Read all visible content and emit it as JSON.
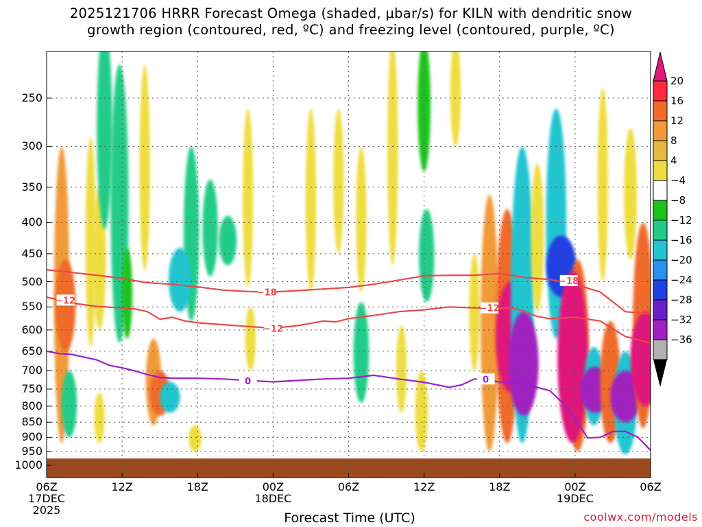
{
  "chart_data": {
    "type": "time-height cross-section (filled contour)",
    "title_line1": "2025121706 HRRR Forecast Omega (shaded, μbar/s) for KILN with dendritic snow",
    "title_line2": "growth region (contoured, red, ºC) and freezing level (contoured, purple, ºC)",
    "xlabel": "Forecast Time (UTC)",
    "credit": "coolwx.com/models",
    "x_ticks": [
      {
        "hour": 0,
        "lines": [
          "06Z",
          "17DEC",
          "2025"
        ]
      },
      {
        "hour": 6,
        "lines": [
          "12Z"
        ]
      },
      {
        "hour": 12,
        "lines": [
          "18Z"
        ]
      },
      {
        "hour": 18,
        "lines": [
          "00Z",
          "18DEC"
        ]
      },
      {
        "hour": 24,
        "lines": [
          "06Z"
        ]
      },
      {
        "hour": 30,
        "lines": [
          "12Z"
        ]
      },
      {
        "hour": 36,
        "lines": [
          "18Z"
        ]
      },
      {
        "hour": 42,
        "lines": [
          "00Z",
          "19DEC"
        ]
      },
      {
        "hour": 48,
        "lines": [
          "06Z"
        ]
      }
    ],
    "x_range_hours": [
      0,
      48
    ],
    "y_axis": "pressure (mb)",
    "y_ticks": [
      250,
      300,
      350,
      400,
      450,
      500,
      550,
      600,
      650,
      700,
      750,
      800,
      850,
      900,
      950,
      1000
    ],
    "y_range_mb": [
      200,
      1000
    ],
    "colorbar": {
      "labels": [
        "20",
        "16",
        "12",
        "8",
        "4",
        "−4",
        "−8",
        "−12",
        "−16",
        "−20",
        "−24",
        "−28",
        "−32",
        "−36"
      ],
      "colors": [
        "#ff2a3c",
        "#f06a2a",
        "#f09a38",
        "#e6b840",
        "#eedd40",
        "#ffffff",
        "#1bc41b",
        "#22cc88",
        "#22c4d0",
        "#2a90f0",
        "#2040e0",
        "#6a20c8",
        "#a020c0",
        "#b0b0b0"
      ],
      "top_color": "#e0187a",
      "bottom_color": "#000000"
    },
    "contours": [
      {
        "label": "-18",
        "color": "#e84a4a",
        "level_c": -18,
        "points": [
          [
            0,
            478
          ],
          [
            4,
            488
          ],
          [
            6,
            494
          ],
          [
            8,
            502
          ],
          [
            10,
            505
          ],
          [
            12,
            510
          ],
          [
            14,
            516
          ],
          [
            16,
            519
          ],
          [
            18,
            520
          ],
          [
            20,
            517
          ],
          [
            22,
            514
          ],
          [
            24,
            511
          ],
          [
            26,
            505
          ],
          [
            28,
            497
          ],
          [
            30,
            489
          ],
          [
            32,
            488
          ],
          [
            34,
            488
          ],
          [
            36,
            485
          ],
          [
            38,
            492
          ],
          [
            40,
            496
          ],
          [
            42,
            505
          ],
          [
            44,
            520
          ],
          [
            46,
            560
          ],
          [
            48,
            565
          ]
        ],
        "labels_at": [
          [
            17.5,
            520
          ],
          [
            41.5,
            498
          ]
        ]
      },
      {
        "label": "-12",
        "color": "#e84a4a",
        "level_c": -12,
        "points": [
          [
            0,
            530
          ],
          [
            2,
            542
          ],
          [
            4,
            549
          ],
          [
            6,
            552
          ],
          [
            7,
            554
          ],
          [
            8,
            560
          ],
          [
            9,
            576
          ],
          [
            10,
            572
          ],
          [
            11,
            580
          ],
          [
            12,
            584
          ],
          [
            14,
            588
          ],
          [
            16,
            592
          ],
          [
            18,
            596
          ],
          [
            20,
            590
          ],
          [
            21,
            585
          ],
          [
            22,
            580
          ],
          [
            23,
            582
          ],
          [
            24,
            575
          ],
          [
            26,
            568
          ],
          [
            28,
            560
          ],
          [
            30,
            556
          ],
          [
            32,
            550
          ],
          [
            34,
            552
          ],
          [
            36,
            553
          ],
          [
            37,
            552
          ],
          [
            38,
            560
          ],
          [
            39,
            570
          ],
          [
            40,
            575
          ],
          [
            42,
            572
          ],
          [
            44,
            580
          ],
          [
            46,
            615
          ],
          [
            48,
            630
          ]
        ],
        "labels_at": [
          [
            1.5,
            536
          ],
          [
            18,
            596
          ],
          [
            35.2,
            552
          ]
        ]
      },
      {
        "label": "0",
        "color": "#9a20c8",
        "level_c": 0,
        "points": [
          [
            0,
            650
          ],
          [
            1,
            656
          ],
          [
            2,
            658
          ],
          [
            4,
            672
          ],
          [
            5,
            686
          ],
          [
            6,
            692
          ],
          [
            7,
            700
          ],
          [
            8,
            710
          ],
          [
            9,
            718
          ],
          [
            10,
            720
          ],
          [
            12,
            720
          ],
          [
            14,
            722
          ],
          [
            16,
            726
          ],
          [
            18,
            730
          ],
          [
            20,
            726
          ],
          [
            22,
            722
          ],
          [
            24,
            720
          ],
          [
            26,
            712
          ],
          [
            28,
            722
          ],
          [
            30,
            731
          ],
          [
            32,
            745
          ],
          [
            33,
            738
          ],
          [
            34,
            722
          ],
          [
            36,
            730
          ],
          [
            37,
            732
          ],
          [
            38,
            736
          ],
          [
            39,
            745
          ],
          [
            40,
            755
          ],
          [
            41,
            790
          ],
          [
            42,
            840
          ],
          [
            43,
            902
          ],
          [
            44,
            900
          ],
          [
            45,
            880
          ],
          [
            46,
            880
          ],
          [
            47,
            900
          ],
          [
            48,
            945
          ]
        ],
        "labels_at": [
          [
            16,
            727
          ],
          [
            34.9,
            722
          ]
        ]
      }
    ],
    "shaded_regions": [
      {
        "hour": 1.2,
        "p_top": 300,
        "p_bottom": 920,
        "omega": 8
      },
      {
        "hour": 1.5,
        "p_top": 460,
        "p_bottom": 650,
        "omega": 12
      },
      {
        "hour": 3.5,
        "p_top": 290,
        "p_bottom": 640,
        "omega": 4
      },
      {
        "hour": 4.2,
        "p_top": 350,
        "p_bottom": 600,
        "omega": 6
      },
      {
        "hour": 1.8,
        "p_top": 700,
        "p_bottom": 900,
        "omega": -8
      },
      {
        "hour": 4.6,
        "p_top": 190,
        "p_bottom": 410,
        "omega": -8
      },
      {
        "hour": 5.8,
        "p_top": 220,
        "p_bottom": 630,
        "omega": -10
      },
      {
        "hour": 4.2,
        "p_top": 760,
        "p_bottom": 920,
        "omega": 4
      },
      {
        "hour": 6.4,
        "p_top": 440,
        "p_bottom": 620,
        "omega": -4
      },
      {
        "hour": 8.5,
        "p_top": 620,
        "p_bottom": 860,
        "omega": 8
      },
      {
        "hour": 9.0,
        "p_top": 700,
        "p_bottom": 830,
        "omega": 12
      },
      {
        "hour": 9.8,
        "p_top": 730,
        "p_bottom": 820,
        "omega": -12
      },
      {
        "hour": 11.5,
        "p_top": 300,
        "p_bottom": 580,
        "omega": -8
      },
      {
        "hour": 10.6,
        "p_top": 440,
        "p_bottom": 560,
        "omega": -14
      },
      {
        "hour": 13.0,
        "p_top": 340,
        "p_bottom": 490,
        "omega": -8
      },
      {
        "hour": 14.4,
        "p_top": 390,
        "p_bottom": 470,
        "omega": -10
      },
      {
        "hour": 16.0,
        "p_top": 260,
        "p_bottom": 510,
        "omega": 4
      },
      {
        "hour": 11.8,
        "p_top": 860,
        "p_bottom": 950,
        "omega": 6
      },
      {
        "hour": 7.8,
        "p_top": 220,
        "p_bottom": 480,
        "omega": 4
      },
      {
        "hour": 16.2,
        "p_top": 550,
        "p_bottom": 700,
        "omega": 4
      },
      {
        "hour": 21.0,
        "p_top": 260,
        "p_bottom": 520,
        "omega": 4
      },
      {
        "hour": 23.2,
        "p_top": 260,
        "p_bottom": 450,
        "omega": 4
      },
      {
        "hour": 25.0,
        "p_top": 540,
        "p_bottom": 790,
        "omega": -8
      },
      {
        "hour": 25.0,
        "p_top": 300,
        "p_bottom": 520,
        "omega": 4
      },
      {
        "hour": 27.5,
        "p_top": 200,
        "p_bottom": 470,
        "omega": 4
      },
      {
        "hour": 28.2,
        "p_top": 590,
        "p_bottom": 820,
        "omega": 4
      },
      {
        "hour": 29.8,
        "p_top": 700,
        "p_bottom": 950,
        "omega": 6
      },
      {
        "hour": 30.2,
        "p_top": 380,
        "p_bottom": 540,
        "omega": -8
      },
      {
        "hour": 30.0,
        "p_top": 200,
        "p_bottom": 330,
        "omega": -6
      },
      {
        "hour": 32.5,
        "p_top": 200,
        "p_bottom": 300,
        "omega": 4
      },
      {
        "hour": 34.0,
        "p_top": 450,
        "p_bottom": 700,
        "omega": 4
      },
      {
        "hour": 35.2,
        "p_top": 360,
        "p_bottom": 950,
        "omega": 10
      },
      {
        "hour": 36.6,
        "p_top": 380,
        "p_bottom": 920,
        "omega": 14
      },
      {
        "hour": 36.9,
        "p_top": 500,
        "p_bottom": 760,
        "omega": 20
      },
      {
        "hour": 37.8,
        "p_top": 300,
        "p_bottom": 920,
        "omega": -14
      },
      {
        "hour": 37.9,
        "p_top": 560,
        "p_bottom": 830,
        "omega": -28
      },
      {
        "hour": 39.0,
        "p_top": 320,
        "p_bottom": 560,
        "omega": 6
      },
      {
        "hour": 40.5,
        "p_top": 260,
        "p_bottom": 620,
        "omega": -12
      },
      {
        "hour": 40.9,
        "p_top": 420,
        "p_bottom": 530,
        "omega": -22
      },
      {
        "hour": 42.2,
        "p_top": 460,
        "p_bottom": 950,
        "omega": 14
      },
      {
        "hour": 41.8,
        "p_top": 480,
        "p_bottom": 920,
        "omega": 20
      },
      {
        "hour": 43.5,
        "p_top": 640,
        "p_bottom": 860,
        "omega": -12
      },
      {
        "hour": 43.6,
        "p_top": 690,
        "p_bottom": 820,
        "omega": -28
      },
      {
        "hour": 44.8,
        "p_top": 580,
        "p_bottom": 920,
        "omega": 12
      },
      {
        "hour": 46.0,
        "p_top": 650,
        "p_bottom": 960,
        "omega": -14
      },
      {
        "hour": 46.0,
        "p_top": 700,
        "p_bottom": 850,
        "omega": -30
      },
      {
        "hour": 47.4,
        "p_top": 400,
        "p_bottom": 870,
        "omega": 12
      },
      {
        "hour": 47.6,
        "p_top": 560,
        "p_bottom": 800,
        "omega": 20
      },
      {
        "hour": 44.2,
        "p_top": 240,
        "p_bottom": 500,
        "omega": 4
      },
      {
        "hour": 46.4,
        "p_top": 280,
        "p_bottom": 460,
        "omega": 6
      }
    ],
    "surface": {
      "color": "#9a4a1e",
      "p_top": 975
    }
  }
}
